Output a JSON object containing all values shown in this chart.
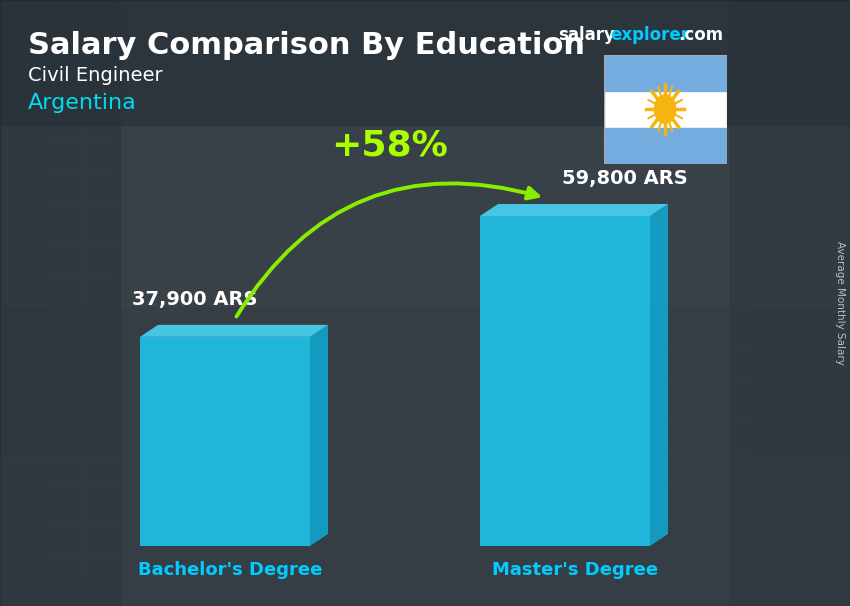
{
  "title": "Salary Comparison By Education",
  "subtitle1": "Civil Engineer",
  "subtitle2": "Argentina",
  "categories": [
    "Bachelor's Degree",
    "Master's Degree"
  ],
  "values": [
    37900,
    59800
  ],
  "value_labels": [
    "37,900 ARS",
    "59,800 ARS"
  ],
  "pct_change": "+58%",
  "bar_color": "#1EC8F0",
  "bar_right_color": "#0FA8D0",
  "bar_top_color": "#4AD8F8",
  "ylabel": "Average Monthly Salary",
  "title_color": "#FFFFFF",
  "subtitle1_color": "#FFFFFF",
  "subtitle2_color": "#00DDEE",
  "brand_salary_color": "#FFFFFF",
  "brand_explorer_color": "#00CCFF",
  "pct_color": "#AAFF00",
  "value_label_color": "#FFFFFF",
  "xlabel_color": "#00CCFF",
  "bg_color": "#5a6a74",
  "flag_blue": "#74ACDF",
  "flag_sun": "#F6B40E",
  "arrow_color": "#88EE00"
}
